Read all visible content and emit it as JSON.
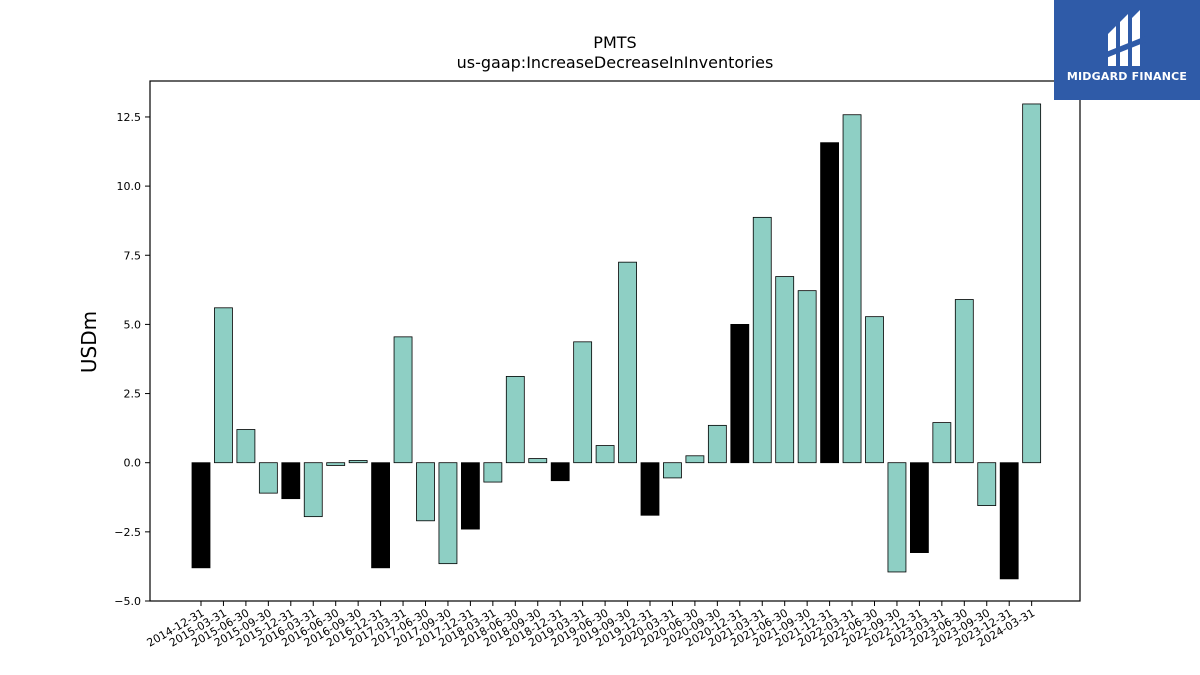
{
  "logo": {
    "text": "MIDGARD FINANCE",
    "background": "#2f5ba8"
  },
  "chart_data": {
    "type": "bar",
    "title": "PMTS",
    "subtitle": "us-gaap:IncreaseDecreaseInInventories",
    "xlabel": "",
    "ylabel": "USDm",
    "ylim": [
      -5.0,
      13.8
    ],
    "yticks": [
      -5.0,
      -2.5,
      0.0,
      2.5,
      5.0,
      7.5,
      10.0,
      12.5
    ],
    "ytick_labels": [
      "−5.0",
      "−2.5",
      "0.0",
      "2.5",
      "5.0",
      "7.5",
      "10.0",
      "12.5"
    ],
    "grid": false,
    "colors": {
      "quarter": "#8ecfc4",
      "year_end": "#000000",
      "edge": "#000000"
    },
    "categories": [
      "2014-12-31",
      "2015-03-31",
      "2015-06-30",
      "2015-09-30",
      "2015-12-31",
      "2016-03-31",
      "2016-06-30",
      "2016-09-30",
      "2016-12-31",
      "2017-03-31",
      "2017-06-30",
      "2017-09-30",
      "2017-12-31",
      "2018-03-31",
      "2018-06-30",
      "2018-09-30",
      "2018-12-31",
      "2019-03-31",
      "2019-06-30",
      "2019-09-30",
      "2019-12-31",
      "2020-03-31",
      "2020-06-30",
      "2020-09-30",
      "2020-12-31",
      "2021-03-31",
      "2021-06-30",
      "2021-09-30",
      "2021-12-31",
      "2022-03-31",
      "2022-06-30",
      "2022-09-30",
      "2022-12-31",
      "2023-03-31",
      "2023-06-30",
      "2023-09-30",
      "2023-12-31",
      "2024-03-31"
    ],
    "values": [
      -3.8,
      5.6,
      1.2,
      -1.1,
      -1.3,
      -1.95,
      -0.1,
      0.08,
      -3.8,
      4.55,
      -2.1,
      -3.65,
      -2.4,
      -0.7,
      3.12,
      0.15,
      -0.65,
      4.37,
      0.62,
      7.25,
      -1.9,
      -0.55,
      0.25,
      1.35,
      5.0,
      8.87,
      6.73,
      6.22,
      11.57,
      12.58,
      5.28,
      -3.95,
      -3.25,
      1.45,
      5.9,
      -1.55,
      -4.2,
      12.97
    ],
    "year_end": [
      true,
      false,
      false,
      false,
      true,
      false,
      false,
      false,
      true,
      false,
      false,
      false,
      true,
      false,
      false,
      false,
      true,
      false,
      false,
      false,
      true,
      false,
      false,
      false,
      true,
      false,
      false,
      false,
      true,
      false,
      false,
      false,
      true,
      false,
      false,
      false,
      true,
      false
    ]
  }
}
